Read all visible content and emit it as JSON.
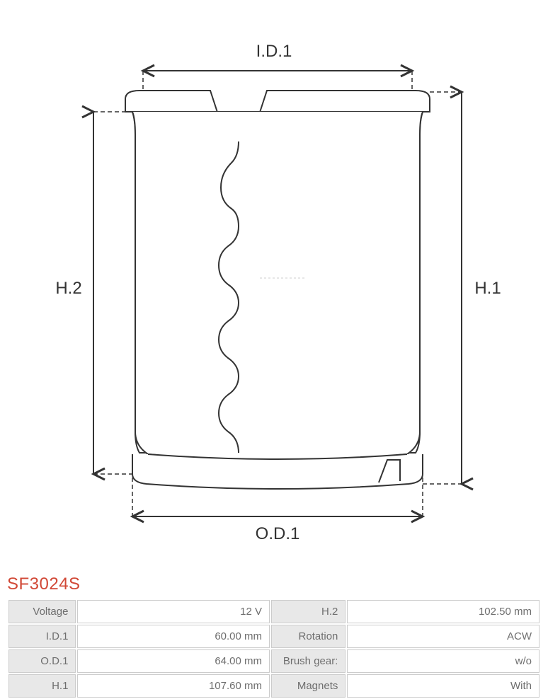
{
  "title": "SF3024S",
  "title_color": "#d14836",
  "diagram": {
    "labels": {
      "id1": "I.D.1",
      "od1": "O.D.1",
      "h1": "H.1",
      "h2": "H.2"
    },
    "stroke_color": "#333333",
    "stroke_width": 2,
    "dash_pattern": "6,4",
    "body_fill": "#ffffff",
    "background": "#ffffff"
  },
  "table": {
    "label_bg": "#e8e8e8",
    "value_bg": "#ffffff",
    "border_color": "#cccccc",
    "text_color": "#6e6e6e",
    "rows": [
      {
        "l1": "Voltage",
        "v1": "12 V",
        "l2": "H.2",
        "v2": "102.50 mm"
      },
      {
        "l1": "I.D.1",
        "v1": "60.00 mm",
        "l2": "Rotation",
        "v2": "ACW"
      },
      {
        "l1": "O.D.1",
        "v1": "64.00 mm",
        "l2": "Brush gear:",
        "v2": "w/o"
      },
      {
        "l1": "H.1",
        "v1": "107.60 mm",
        "l2": "Magnets",
        "v2": "With"
      }
    ]
  }
}
